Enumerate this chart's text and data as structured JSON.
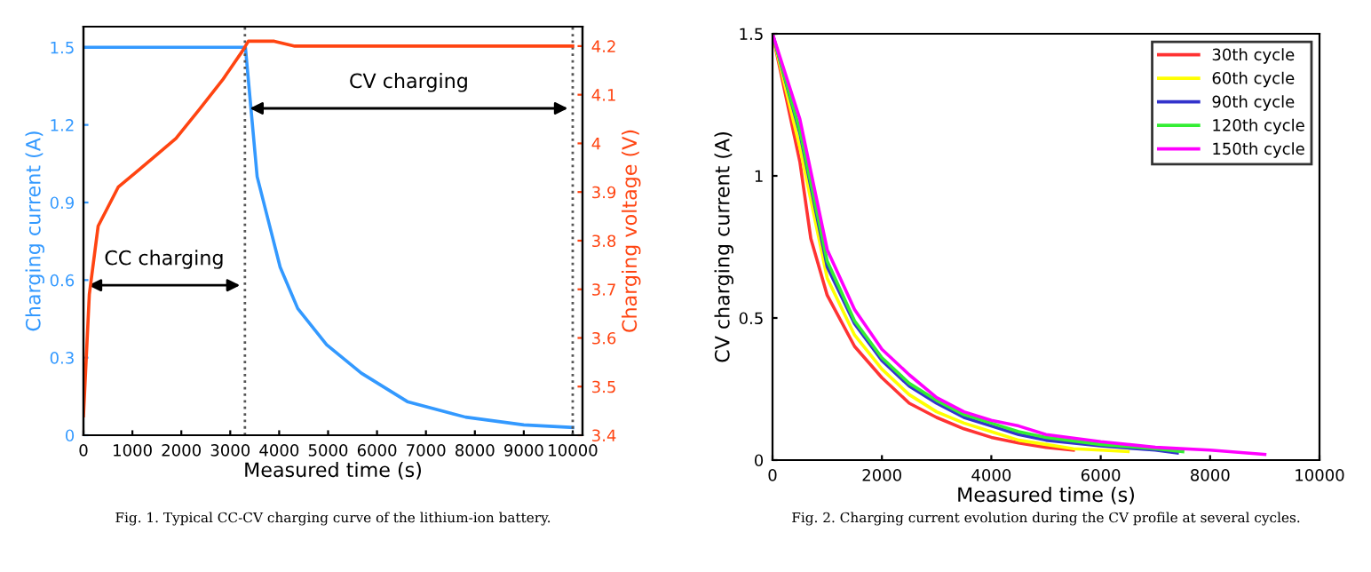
{
  "chart_data": [
    {
      "type": "line",
      "xlabel": "Measured time (s)",
      "ylabel": "Charging current (A)",
      "y2label": "Charging voltage (V)",
      "xlim": [
        0,
        10200
      ],
      "xticks": [
        0,
        1000,
        2000,
        3000,
        4000,
        5000,
        6000,
        7000,
        8000,
        9000,
        10000
      ],
      "ylim": [
        0,
        1.58
      ],
      "yticks": [
        0,
        0.3,
        0.6,
        0.9,
        1.2,
        1.5
      ],
      "y2lim": [
        3.4,
        4.24
      ],
      "y2ticks": [
        3.4,
        3.5,
        3.6,
        3.7,
        3.8,
        3.9,
        4,
        4.1,
        4.2
      ],
      "series": [
        {
          "color": "#3399ff",
          "x": [
            0,
            3310,
            3550,
            4020,
            4380,
            4970,
            5680,
            6620,
            7810,
            9000,
            10000
          ],
          "values": [
            1.5,
            1.5,
            1.0,
            0.65,
            0.49,
            0.35,
            0.24,
            0.13,
            0.07,
            0.04,
            0.03
          ]
        },
        {
          "color": "#ff4411",
          "axis": "y2",
          "x": [
            0,
            120,
            300,
            710,
            1065,
            1420,
            1890,
            2370,
            2840,
            3250,
            3370,
            3900,
            4320,
            10000
          ],
          "values": [
            3.44,
            3.69,
            3.83,
            3.91,
            3.94,
            3.97,
            4.01,
            4.07,
            4.13,
            4.19,
            4.21,
            4.21,
            4.2,
            4.2
          ]
        }
      ],
      "ref_lines": [
        {
          "axis": "x",
          "value": 3300,
          "color": "#555555",
          "line_style": "dotted"
        },
        {
          "axis": "x",
          "value": 10000,
          "color": "#555555",
          "line_style": "dotted"
        }
      ],
      "annotations": [
        "CC charging",
        "CV charging",
        "Fig. 1. Typical CC-CV charging curve of the lithium-ion battery."
      ],
      "grid": false,
      "legend": false,
      "line_style": "solid",
      "marker": "none"
    },
    {
      "type": "line",
      "xlabel": "Measured time (s)",
      "ylabel": "CV charging current (A)",
      "xlim": [
        0,
        10000
      ],
      "xticks": [
        0,
        2000,
        4000,
        6000,
        8000,
        10000
      ],
      "ylim": [
        0,
        1.5
      ],
      "yticks": [
        0,
        0.5,
        1,
        1.5
      ],
      "series": [
        {
          "name": "30th cycle",
          "color": "#ff3333",
          "x": [
            0,
            500,
            700,
            1000,
            1500,
            2000,
            2500,
            3000,
            3500,
            4000,
            4500,
            5000,
            5500
          ],
          "values": [
            1.5,
            1.05,
            0.78,
            0.58,
            0.4,
            0.29,
            0.2,
            0.15,
            0.11,
            0.08,
            0.06,
            0.045,
            0.035
          ]
        },
        {
          "name": "60th cycle",
          "color": "#ffff00",
          "x": [
            0,
            500,
            1000,
            1500,
            2000,
            2500,
            3000,
            3500,
            4000,
            4500,
            5000,
            5500,
            6000,
            6500
          ],
          "values": [
            1.5,
            1.1,
            0.64,
            0.44,
            0.32,
            0.23,
            0.17,
            0.13,
            0.1,
            0.07,
            0.055,
            0.04,
            0.035,
            0.03
          ]
        },
        {
          "name": "90th cycle",
          "color": "#3333cc",
          "x": [
            0,
            500,
            1000,
            1500,
            2000,
            2500,
            3000,
            3500,
            4000,
            4500,
            5000,
            6000,
            7000,
            7400
          ],
          "values": [
            1.5,
            1.15,
            0.68,
            0.48,
            0.35,
            0.26,
            0.2,
            0.15,
            0.12,
            0.09,
            0.07,
            0.05,
            0.035,
            0.025
          ]
        },
        {
          "name": "120th cycle",
          "color": "#33ee33",
          "x": [
            0,
            500,
            1000,
            1500,
            2000,
            2500,
            3000,
            3500,
            4000,
            4500,
            5000,
            6000,
            7000,
            7500
          ],
          "values": [
            1.5,
            1.16,
            0.7,
            0.49,
            0.36,
            0.27,
            0.21,
            0.16,
            0.13,
            0.1,
            0.08,
            0.055,
            0.04,
            0.03
          ]
        },
        {
          "name": "150th cycle",
          "color": "#ff00ff",
          "x": [
            0,
            500,
            1000,
            1500,
            2000,
            2500,
            3000,
            3500,
            4000,
            4500,
            5000,
            6000,
            7000,
            8000,
            9000
          ],
          "values": [
            1.5,
            1.2,
            0.74,
            0.53,
            0.39,
            0.3,
            0.22,
            0.17,
            0.14,
            0.12,
            0.09,
            0.065,
            0.045,
            0.035,
            0.02
          ]
        }
      ],
      "annotations": [
        "Fig. 2. Charging current evolution during the CV profile at several cycles."
      ],
      "grid": false,
      "legend": "top right",
      "line_style": "solid",
      "marker": "none"
    }
  ]
}
